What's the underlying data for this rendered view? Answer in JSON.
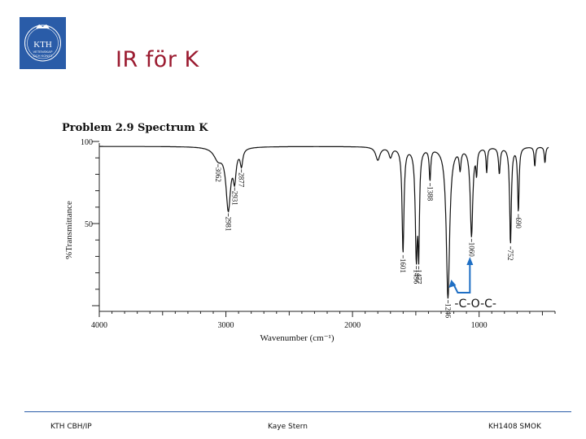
{
  "slide": {
    "title": "IR för K",
    "logo_text": [
      "KTH",
      "VETENSKAP",
      "OCH KONST"
    ],
    "footer_left": "KTH CBH/IP",
    "footer_center": "Kaye Stern",
    "footer_right": "KH1408 SMOK"
  },
  "colors": {
    "logo_bg": "#2a5ca8",
    "title": "#9b1b30",
    "footer_rule": "#2a5ca8",
    "annotation": "#1f6fc4",
    "spectrum": "#111111"
  },
  "chart_data": {
    "type": "line",
    "title": "Problem 2.9 Spectrum K",
    "xlabel": "Wavenumber (cm⁻¹)",
    "ylabel": "%Transmittance",
    "x_axis_reversed": true,
    "xlim": [
      4000,
      400
    ],
    "ylim": [
      0,
      100
    ],
    "x_ticks": [
      4000,
      3000,
      2000,
      1000
    ],
    "y_ticks": [
      100,
      50
    ],
    "grid": false,
    "peaks": [
      {
        "x": 3062,
        "t": 90,
        "label": "3062"
      },
      {
        "x": 2981,
        "t": 60,
        "label": "2981"
      },
      {
        "x": 2931,
        "t": 80,
        "label": "2931"
      },
      {
        "x": 2877,
        "t": 87,
        "label": "2877"
      },
      {
        "x": 1601,
        "t": 33,
        "label": "1601"
      },
      {
        "x": 1496,
        "t": 33,
        "label": "1496"
      },
      {
        "x": 1477,
        "t": 40,
        "label": "1477"
      },
      {
        "x": 1388,
        "t": 78,
        "label": "1388"
      },
      {
        "x": 1246,
        "t": 5,
        "label": "1246"
      },
      {
        "x": 1060,
        "t": 43,
        "label": "1060"
      },
      {
        "x": 752,
        "t": 38,
        "label": "752"
      },
      {
        "x": 690,
        "t": 58,
        "label": "690"
      }
    ],
    "annotation": {
      "text": "-C-O-C-",
      "points_to": [
        1246,
        1060
      ]
    }
  }
}
